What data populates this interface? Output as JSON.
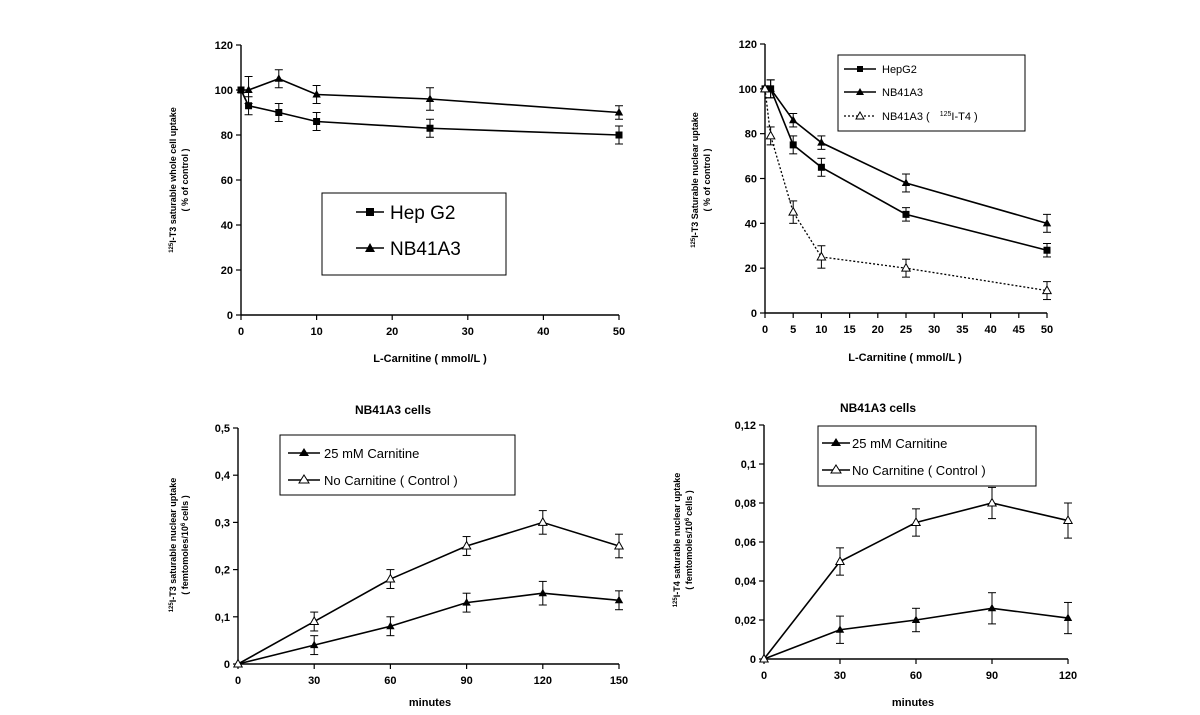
{
  "chart_data": [
    {
      "type": "line",
      "title": "",
      "xlabel": "L-Carnitine ( mmol/L )",
      "ylabel_sup": "125",
      "ylabel_line1": "I-T3 saturable whole cell uptake",
      "ylabel_line2": "( % of control )",
      "xlim": [
        0,
        50
      ],
      "ylim": [
        0,
        120
      ],
      "x_ticks": [
        0,
        10,
        20,
        30,
        40,
        50
      ],
      "x_tick_labels": [
        "0",
        "10",
        "20",
        "30",
        "40",
        "50"
      ],
      "y_ticks": [
        0,
        20,
        40,
        60,
        80,
        100,
        120
      ],
      "y_tick_labels": [
        "0",
        "20",
        "40",
        "60",
        "80",
        "100",
        "120"
      ],
      "legend_position": "center",
      "series": [
        {
          "name": "Hep G2",
          "marker": "square",
          "x": [
            0,
            1,
            5,
            10,
            25,
            50
          ],
          "y": [
            100,
            93,
            90,
            86,
            83,
            80
          ],
          "err": [
            0,
            4,
            4,
            4,
            4,
            4
          ]
        },
        {
          "name": "NB41A3",
          "marker": "triangle",
          "x": [
            0,
            1,
            5,
            10,
            25,
            50
          ],
          "y": [
            100,
            100,
            105,
            98,
            96,
            90
          ],
          "err": [
            0,
            6,
            4,
            4,
            5,
            3
          ]
        }
      ]
    },
    {
      "type": "line",
      "title": "",
      "xlabel": "L-Carnitine ( mmol/L )",
      "ylabel_sup": "125",
      "ylabel_line1": "I-T3 Saturable nuclear uptake",
      "ylabel_line2": "( % of control )",
      "xlim": [
        0,
        50
      ],
      "ylim": [
        0,
        120
      ],
      "x_ticks": [
        0,
        5,
        10,
        15,
        20,
        25,
        30,
        35,
        40,
        45,
        50
      ],
      "x_tick_labels": [
        "0",
        "5",
        "10",
        "15",
        "20",
        "25",
        "30",
        "35",
        "40",
        "45",
        "50"
      ],
      "y_ticks": [
        0,
        20,
        40,
        60,
        80,
        100,
        120
      ],
      "y_tick_labels": [
        "0",
        "20",
        "40",
        "60",
        "80",
        "100",
        "120"
      ],
      "legend_position": "top-right",
      "series": [
        {
          "name": "HepG2",
          "marker": "square",
          "x": [
            0,
            1,
            5,
            10,
            25,
            50
          ],
          "y": [
            100,
            100,
            75,
            65,
            44,
            28
          ],
          "err": [
            0,
            4,
            4,
            4,
            3,
            3
          ]
        },
        {
          "name": "NB41A3",
          "marker": "triangle",
          "x": [
            0,
            1,
            5,
            10,
            25,
            50
          ],
          "y": [
            100,
            100,
            86,
            76,
            58,
            40
          ],
          "err": [
            0,
            4,
            3,
            3,
            4,
            4
          ]
        },
        {
          "name": "NB41A3 (",
          "name_sup": "125",
          "name_tail": "I-T4 )",
          "marker": "triangle-open",
          "dashed": true,
          "x": [
            0,
            1,
            5,
            10,
            25,
            50
          ],
          "y": [
            100,
            79,
            45,
            25,
            20,
            10
          ],
          "err": [
            0,
            4,
            5,
            5,
            4,
            4
          ]
        }
      ]
    },
    {
      "type": "line",
      "title": "NB41A3 cells",
      "xlabel": "minutes",
      "ylabel_sup": "125",
      "ylabel_line1": "I-T3 saturable nuclear uptake",
      "ylabel_line2": "( femtomoles/10",
      "ylabel_line2_sup": "6",
      "ylabel_line2_tail": "cells )",
      "xlim": [
        0,
        150
      ],
      "ylim": [
        0,
        0.5
      ],
      "x_ticks": [
        0,
        30,
        60,
        90,
        120,
        150
      ],
      "x_tick_labels": [
        "0",
        "30",
        "60",
        "90",
        "120",
        "150"
      ],
      "y_ticks": [
        0,
        0.1,
        0.2,
        0.3,
        0.4,
        0.5
      ],
      "y_tick_labels": [
        "0",
        "0,1",
        "0,2",
        "0,3",
        "0,4",
        "0,5"
      ],
      "legend_position": "top-right",
      "series": [
        {
          "name": "25 mM Carnitine",
          "marker": "triangle",
          "x": [
            0,
            30,
            60,
            90,
            120,
            150
          ],
          "y": [
            0,
            0.04,
            0.08,
            0.13,
            0.15,
            0.135
          ],
          "err": [
            0,
            0.02,
            0.02,
            0.02,
            0.025,
            0.02
          ]
        },
        {
          "name": "No Carnitine ( Control )",
          "marker": "triangle-open",
          "x": [
            0,
            30,
            60,
            90,
            120,
            150
          ],
          "y": [
            0,
            0.09,
            0.18,
            0.25,
            0.3,
            0.25
          ],
          "err": [
            0,
            0.02,
            0.02,
            0.02,
            0.025,
            0.025
          ]
        }
      ]
    },
    {
      "type": "line",
      "title": "NB41A3 cells",
      "xlabel": "minutes",
      "ylabel_sup": "125",
      "ylabel_line1": "I-T4 saturable nuclear uptake",
      "ylabel_line2": "( femtomoles/10",
      "ylabel_line2_sup": "6",
      "ylabel_line2_tail": "cells )",
      "xlim": [
        0,
        120
      ],
      "ylim": [
        0,
        0.12
      ],
      "x_ticks": [
        0,
        30,
        60,
        90,
        120
      ],
      "x_tick_labels": [
        "0",
        "30",
        "60",
        "90",
        "120"
      ],
      "y_ticks": [
        0,
        0.02,
        0.04,
        0.06,
        0.08,
        0.1,
        0.12
      ],
      "y_tick_labels": [
        "0",
        "0,02",
        "0,04",
        "0,06",
        "0,08",
        "0,1",
        "0,12"
      ],
      "legend_position": "top-right",
      "series": [
        {
          "name": "25 mM Carnitine",
          "marker": "triangle",
          "x": [
            0,
            30,
            60,
            90,
            120
          ],
          "y": [
            0,
            0.015,
            0.02,
            0.026,
            0.021
          ],
          "err": [
            0,
            0.007,
            0.006,
            0.008,
            0.008
          ]
        },
        {
          "name": "No Carnitine ( Control )",
          "marker": "triangle-open",
          "x": [
            0,
            30,
            60,
            90,
            120
          ],
          "y": [
            0,
            0.05,
            0.07,
            0.08,
            0.071
          ],
          "err": [
            0,
            0.007,
            0.007,
            0.008,
            0.009
          ]
        }
      ]
    }
  ]
}
